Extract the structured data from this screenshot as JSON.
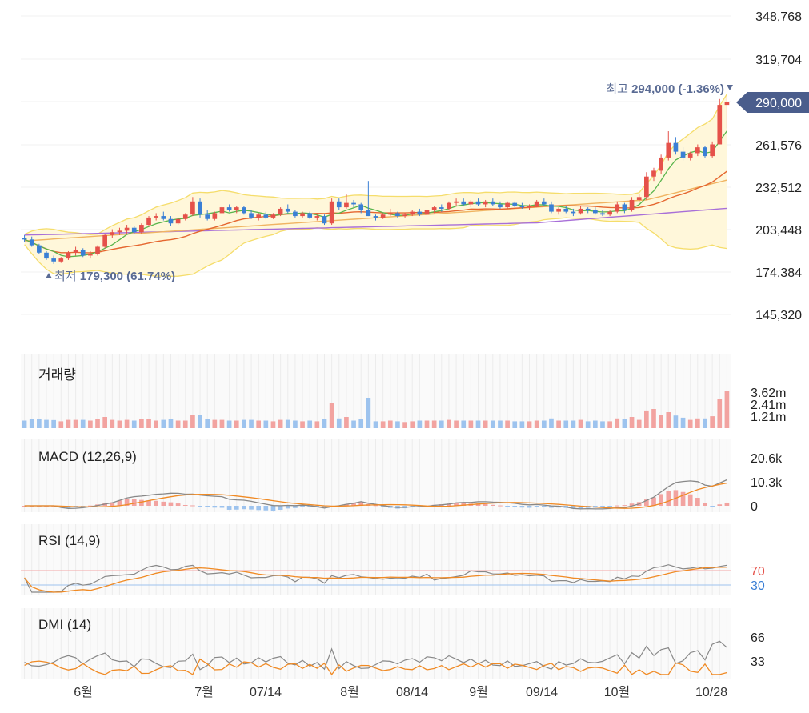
{
  "price_axis": [
    "348,768",
    "319,704",
    "290,000",
    "261,576",
    "232,512",
    "203,448",
    "174,384",
    "145,320"
  ],
  "current_price": "290,000",
  "high_label": {
    "prefix": "최고",
    "value": "294,000 (-1.36%)"
  },
  "low_label": {
    "prefix": "최저",
    "value": "179,300 (61.74%)"
  },
  "volume": {
    "title": "거래량",
    "ticks": [
      "3.62m",
      "2.41m",
      "1.21m"
    ]
  },
  "macd": {
    "title": "MACD (12,26,9)",
    "ticks": [
      "20.6k",
      "10.3k",
      "0"
    ]
  },
  "rsi": {
    "title": "RSI (14,9)",
    "ticks": [
      "70",
      "30"
    ]
  },
  "dmi": {
    "title": "DMI (14)",
    "ticks": [
      "66",
      "33"
    ]
  },
  "date_labels": [
    "6월",
    "7월",
    "07/14",
    "8월",
    "08/14",
    "9월",
    "09/14",
    "10월",
    "10/28"
  ],
  "colors": {
    "up": "#e5514a",
    "down": "#3a7fd5",
    "ma5": "#59b54c",
    "ma20": "#e5662f",
    "ma60": "#f0b462",
    "ma120": "#a86fd8",
    "band": "#f5dd6b",
    "band_fill": "#fff7da",
    "current": "#4a5d8c",
    "macd": "#888888",
    "signal": "#f08a24",
    "rsi_line": "#888888",
    "rsi_signal": "#f08a24",
    "di_plus": "#888888",
    "di_minus": "#f08a24"
  },
  "chart_data": {
    "type": "candlestick",
    "price_range": [
      145320,
      348768
    ],
    "high": 294000,
    "low": 179300,
    "last_close": 290000,
    "candles": [
      [
        197000,
        199000,
        194000,
        196000
      ],
      [
        196000,
        198000,
        191000,
        192000
      ],
      [
        192000,
        193000,
        186000,
        187000
      ],
      [
        187000,
        188000,
        182000,
        183000
      ],
      [
        183000,
        185000,
        179300,
        181000
      ],
      [
        181000,
        184000,
        180000,
        183000
      ],
      [
        183000,
        188000,
        182000,
        187000
      ],
      [
        187000,
        191000,
        185000,
        189000
      ],
      [
        189000,
        190000,
        184000,
        185000
      ],
      [
        185000,
        188000,
        183000,
        186000
      ],
      [
        186000,
        192000,
        185000,
        191000
      ],
      [
        191000,
        200000,
        190000,
        199000
      ],
      [
        199000,
        203000,
        197000,
        201000
      ],
      [
        201000,
        204000,
        199000,
        202000
      ],
      [
        202000,
        206000,
        200000,
        204000
      ],
      [
        204000,
        205000,
        200000,
        201000
      ],
      [
        201000,
        207000,
        200000,
        206000
      ],
      [
        206000,
        212000,
        205000,
        211000
      ],
      [
        211000,
        214000,
        209000,
        212000
      ],
      [
        212000,
        215000,
        209000,
        210000
      ],
      [
        210000,
        212000,
        205000,
        207000
      ],
      [
        207000,
        211000,
        206000,
        210000
      ],
      [
        210000,
        214000,
        209000,
        213000
      ],
      [
        213000,
        225000,
        212000,
        222000
      ],
      [
        222000,
        224000,
        211000,
        213000
      ],
      [
        213000,
        216000,
        209000,
        210000
      ],
      [
        210000,
        215000,
        209000,
        214000
      ],
      [
        214000,
        219000,
        213000,
        218000
      ],
      [
        218000,
        220000,
        215000,
        216000
      ],
      [
        216000,
        219000,
        214000,
        218000
      ],
      [
        218000,
        219000,
        213000,
        214000
      ],
      [
        214000,
        216000,
        210000,
        211000
      ],
      [
        211000,
        214000,
        209000,
        213000
      ],
      [
        213000,
        215000,
        210000,
        211000
      ],
      [
        211000,
        214000,
        210000,
        213000
      ],
      [
        213000,
        218000,
        212000,
        217000
      ],
      [
        217000,
        220000,
        214000,
        215000
      ],
      [
        215000,
        216000,
        211000,
        212000
      ],
      [
        212000,
        215000,
        211000,
        214000
      ],
      [
        214000,
        215000,
        210000,
        211000
      ],
      [
        211000,
        213000,
        209000,
        212000
      ],
      [
        212000,
        213000,
        206000,
        207000
      ],
      [
        207000,
        224000,
        206000,
        222000
      ],
      [
        222000,
        224000,
        216000,
        218000
      ],
      [
        218000,
        227000,
        217000,
        221000
      ],
      [
        221000,
        223000,
        218000,
        220000
      ],
      [
        220000,
        221000,
        214000,
        216000
      ],
      [
        216000,
        236000,
        212000,
        212000
      ],
      [
        212000,
        213000,
        209000,
        211000
      ],
      [
        211000,
        214000,
        210000,
        213000
      ],
      [
        213000,
        217000,
        212000,
        214000
      ],
      [
        214000,
        215000,
        211000,
        212000
      ],
      [
        212000,
        214000,
        211000,
        213000
      ],
      [
        213000,
        216000,
        212000,
        215000
      ],
      [
        215000,
        217000,
        212000,
        213000
      ],
      [
        213000,
        217000,
        212000,
        216000
      ],
      [
        216000,
        219000,
        214000,
        218000
      ],
      [
        218000,
        220000,
        215000,
        217000
      ],
      [
        217000,
        222000,
        216000,
        221000
      ],
      [
        221000,
        224000,
        219000,
        222000
      ],
      [
        222000,
        224000,
        219000,
        220000
      ],
      [
        220000,
        223000,
        218000,
        222000
      ],
      [
        222000,
        224000,
        219000,
        220000
      ],
      [
        220000,
        223000,
        218000,
        222000
      ],
      [
        222000,
        224000,
        219000,
        220000
      ],
      [
        220000,
        222000,
        217000,
        218000
      ],
      [
        218000,
        222000,
        217000,
        221000
      ],
      [
        221000,
        222000,
        218000,
        219000
      ],
      [
        219000,
        221000,
        217000,
        218000
      ],
      [
        218000,
        220000,
        216000,
        219000
      ],
      [
        219000,
        223000,
        218000,
        222000
      ],
      [
        222000,
        224000,
        219000,
        220000
      ],
      [
        220000,
        222000,
        214000,
        215000
      ],
      [
        215000,
        218000,
        213000,
        217000
      ],
      [
        217000,
        219000,
        214000,
        215000
      ],
      [
        215000,
        217000,
        212000,
        214000
      ],
      [
        214000,
        219000,
        213000,
        217000
      ],
      [
        217000,
        218000,
        214000,
        216000
      ],
      [
        216000,
        218000,
        213000,
        214000
      ],
      [
        214000,
        216000,
        212000,
        213000
      ],
      [
        213000,
        216000,
        212000,
        215000
      ],
      [
        215000,
        222000,
        214000,
        220000
      ],
      [
        220000,
        221000,
        214000,
        216000
      ],
      [
        216000,
        225000,
        215000,
        223000
      ],
      [
        223000,
        227000,
        221000,
        225000
      ],
      [
        225000,
        242000,
        223000,
        239000
      ],
      [
        239000,
        245000,
        236000,
        243000
      ],
      [
        243000,
        254000,
        241000,
        252000
      ],
      [
        252000,
        270000,
        250000,
        262000
      ],
      [
        262000,
        266000,
        254000,
        256000
      ],
      [
        256000,
        259000,
        250000,
        252000
      ],
      [
        252000,
        256000,
        250000,
        255000
      ],
      [
        255000,
        261000,
        253000,
        259000
      ],
      [
        259000,
        260000,
        252000,
        253000
      ],
      [
        253000,
        263000,
        252000,
        261000
      ],
      [
        261000,
        292000,
        262000,
        288000
      ],
      [
        288000,
        294000,
        272000,
        290000
      ]
    ],
    "volume_ticks": [
      "3.62m",
      "2.41m",
      "1.21m"
    ],
    "macd_ticks": [
      "20.6k",
      "10.3k",
      "0"
    ],
    "rsi_levels": [
      70,
      30
    ],
    "dmi_ticks": [
      66,
      33
    ]
  }
}
